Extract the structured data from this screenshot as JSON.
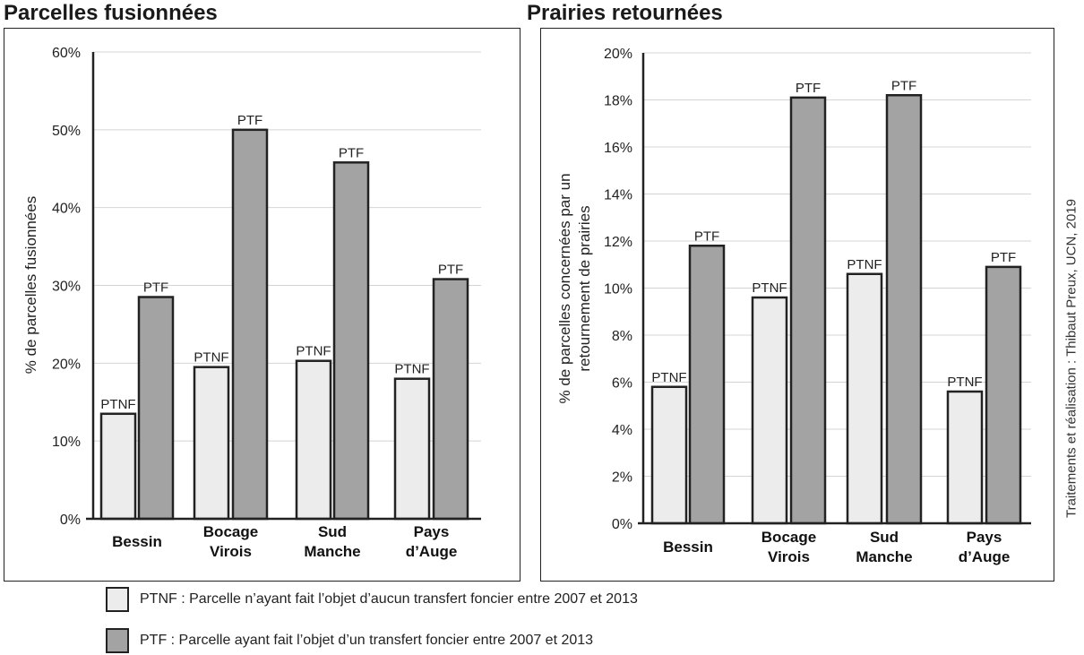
{
  "panels": {
    "left_title": "Parcelles fusionnées",
    "right_title": "Prairies retournées"
  },
  "credit": "Traitements et réalisation : Thibaut Preux, UCN, 2019",
  "legend": {
    "ptnf_text": "PTNF : Parcelle n’ayant fait l’objet d’aucun transfert foncier entre 2007 et 2013",
    "ptf_text": "PTF : Parcelle ayant fait l’objet d’un transfert foncier entre 2007 et 2013"
  },
  "colors": {
    "ptnf": "#ececec",
    "ptf": "#a3a3a3",
    "grid": "#d4d4d4",
    "axis": "#222222"
  },
  "chart_data": [
    {
      "type": "bar",
      "title": "Parcelles fusionnées",
      "ylabel": "% de parcelles fusionnées",
      "categories": [
        [
          "Bessin"
        ],
        [
          "Bocage",
          "Virois"
        ],
        [
          "Sud",
          "Manche"
        ],
        [
          "Pays",
          "d’Auge"
        ]
      ],
      "series": [
        {
          "name": "PTNF",
          "values": [
            13.5,
            19.5,
            20.3,
            18.0
          ]
        },
        {
          "name": "PTF",
          "values": [
            28.5,
            50.0,
            45.8,
            30.8
          ]
        }
      ],
      "ylim": [
        0,
        60
      ],
      "yticks": [
        0,
        10,
        20,
        30,
        40,
        50,
        60
      ],
      "ytick_labels": [
        "0%",
        "10%",
        "20%",
        "30%",
        "40%",
        "50%",
        "60%"
      ],
      "grid": true
    },
    {
      "type": "bar",
      "title": "Prairies retournées",
      "ylabel": [
        "% de parcelles concernées par un",
        "retournement de prairies"
      ],
      "categories": [
        [
          "Bessin"
        ],
        [
          "Bocage",
          "Virois"
        ],
        [
          "Sud",
          "Manche"
        ],
        [
          "Pays",
          "d’Auge"
        ]
      ],
      "series": [
        {
          "name": "PTNF",
          "values": [
            5.8,
            9.6,
            10.6,
            5.6
          ]
        },
        {
          "name": "PTF",
          "values": [
            11.8,
            18.1,
            18.2,
            10.9
          ]
        }
      ],
      "ylim": [
        0,
        20
      ],
      "yticks": [
        0,
        2,
        4,
        6,
        8,
        10,
        12,
        14,
        16,
        18,
        20
      ],
      "ytick_labels": [
        "0%",
        "2%",
        "4%",
        "6%",
        "8%",
        "10%",
        "12%",
        "14%",
        "16%",
        "18%",
        "20%"
      ],
      "grid": true
    }
  ]
}
